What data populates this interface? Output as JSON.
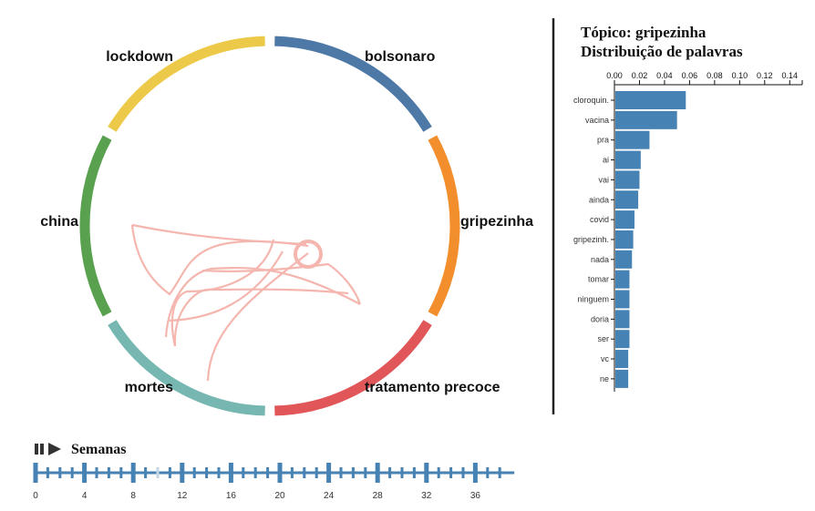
{
  "chord": {
    "segments": [
      {
        "name": "bolsonaro",
        "color": "#4e79a7"
      },
      {
        "name": "gripezinha",
        "color": "#f28e2c"
      },
      {
        "name": "tratamento precoce",
        "color": "#e15759"
      },
      {
        "name": "mortes",
        "color": "#76b7b2"
      },
      {
        "name": "china",
        "color": "#59a14f"
      },
      {
        "name": "lockdown",
        "color": "#edc949"
      }
    ],
    "link_color": "#f4b6ae"
  },
  "side_panel": {
    "title_line1": "Tópico: gripezinha",
    "title_line2": "Distribuição de palavras"
  },
  "chart_data": {
    "type": "bar",
    "orientation": "horizontal",
    "title": "Tópico: gripezinha Distribuição de palavras",
    "categories": [
      "cloroquin.",
      "vacina",
      "pra",
      "ai",
      "vai",
      "ainda",
      "covid",
      "gripezinh.",
      "nada",
      "tomar",
      "ninguem",
      "doria",
      "ser",
      "vc",
      "ne"
    ],
    "values": [
      0.057,
      0.05,
      0.028,
      0.021,
      0.02,
      0.019,
      0.016,
      0.015,
      0.014,
      0.012,
      0.012,
      0.012,
      0.012,
      0.011,
      0.011
    ],
    "xlim": [
      0,
      0.15
    ],
    "xticks": [
      "0.00",
      "0.02",
      "0.04",
      "0.06",
      "0.08",
      "0.10",
      "0.12",
      "0.14"
    ],
    "bar_color": "#4682b4"
  },
  "timeline": {
    "label": "Semanas",
    "tick_labels": [
      "0",
      "4",
      "8",
      "12",
      "16",
      "20",
      "24",
      "28",
      "32",
      "36"
    ],
    "weeks_total": 39,
    "current_week": 10,
    "accent": "#4682b4"
  }
}
